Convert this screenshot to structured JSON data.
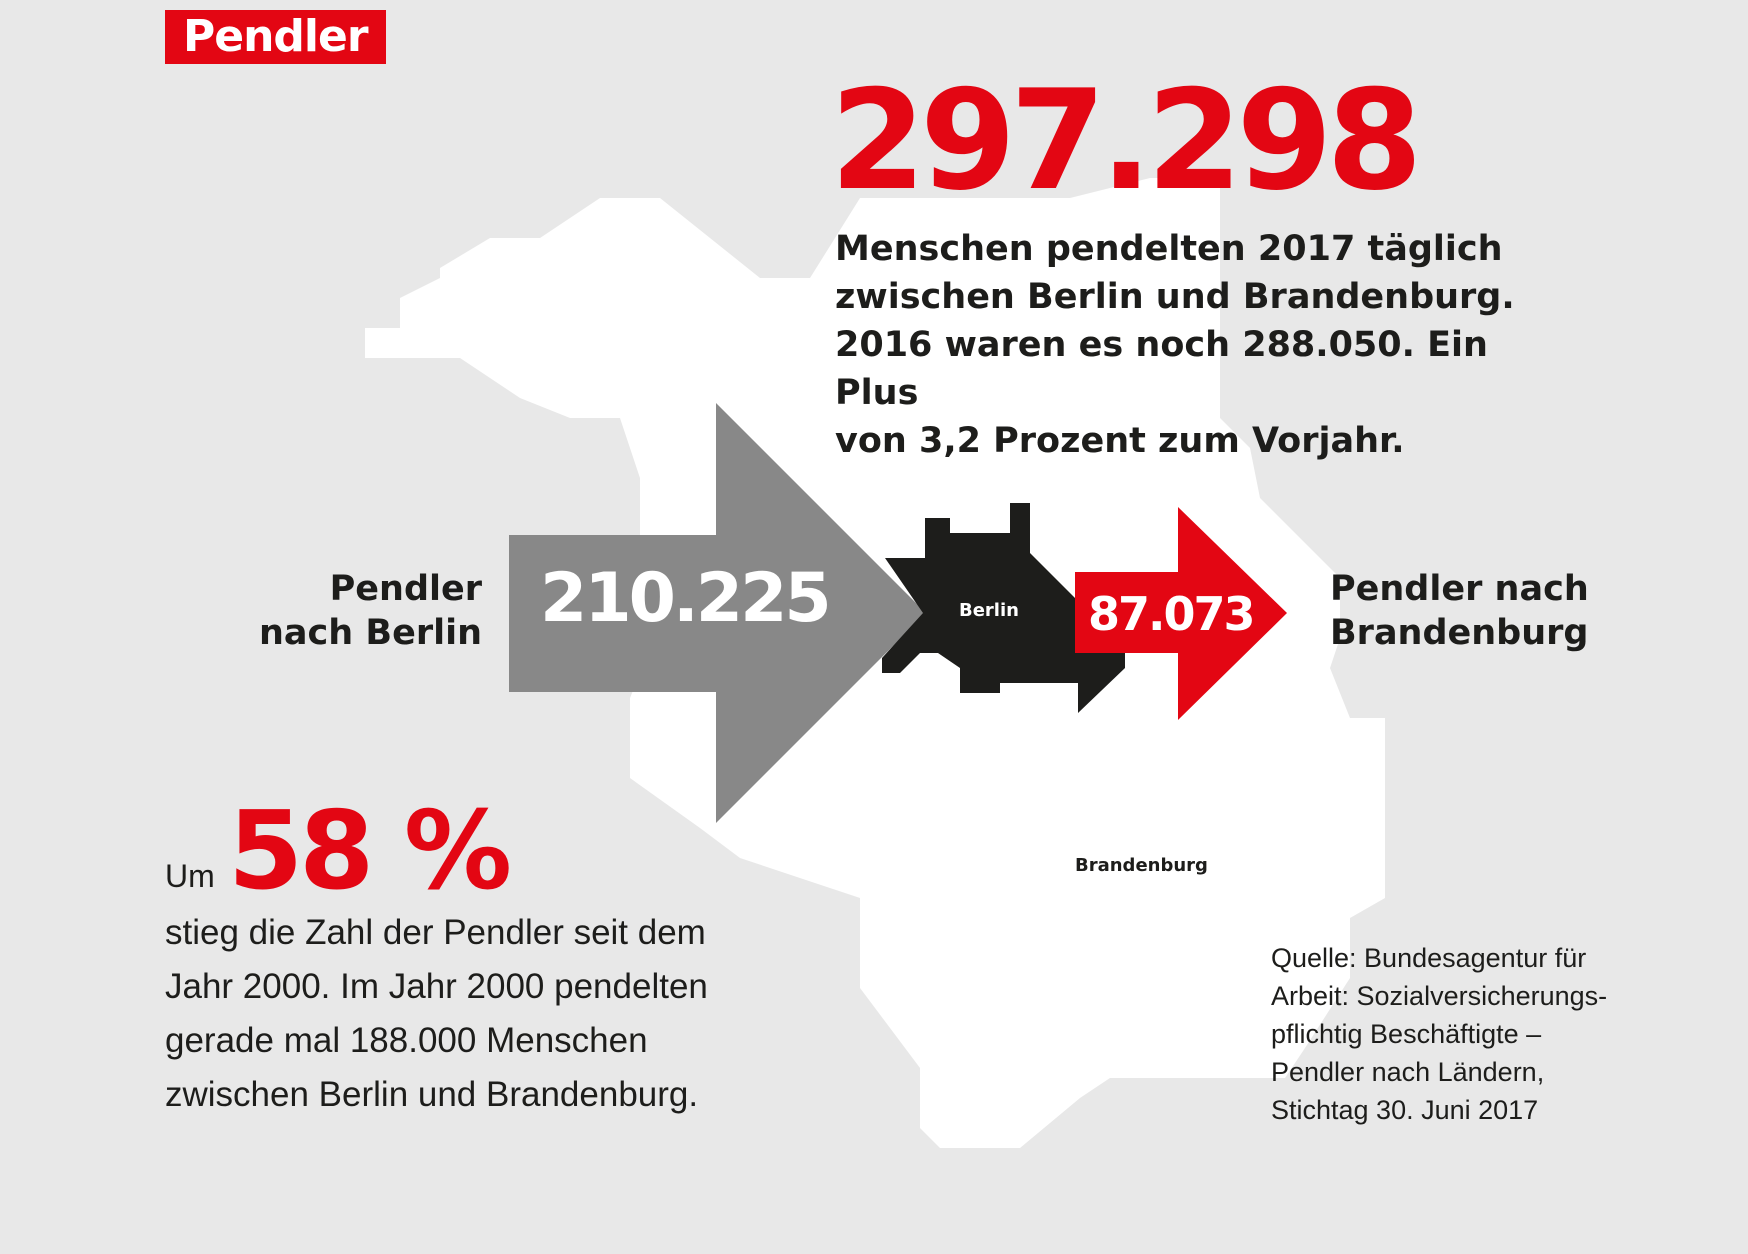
{
  "title": "Pendler",
  "total": {
    "value": "297.298",
    "lines": [
      "Menschen pendelten 2017 täglich",
      "zwischen Berlin und Brandenburg.",
      "2016 waren es noch 288.050. Ein Plus",
      "von 3,2 Prozent zum Vorjahr."
    ]
  },
  "to_berlin": {
    "label_lines": [
      "Pendler",
      "nach Berlin"
    ],
    "value": "210.225"
  },
  "to_brandenburg": {
    "label_lines": [
      "Pendler nach",
      "Brandenburg"
    ],
    "value": "87.073"
  },
  "map": {
    "berlin": "Berlin",
    "brandenburg": "Brandenburg"
  },
  "growth": {
    "prefix": "Um",
    "percent": "58 %",
    "lines": [
      "stieg die Zahl der Pendler seit dem",
      "Jahr 2000. Im Jahr 2000 pendelten",
      "gerade mal 188.000 Menschen",
      "zwischen Berlin und Brandenburg."
    ]
  },
  "source_lines": [
    "Quelle: Bundesagentur für",
    "Arbeit: Sozialversicherungs-",
    "pflichtig Beschäftigte –",
    "Pendler nach Ländern,",
    "Stichtag 30. Juni 2017"
  ],
  "colors": {
    "accent_red": "#e30613",
    "arrow_grey": "#888888",
    "berlin_black": "#1d1d1b",
    "map_white": "#ffffff",
    "background": "#e8e8e8"
  }
}
